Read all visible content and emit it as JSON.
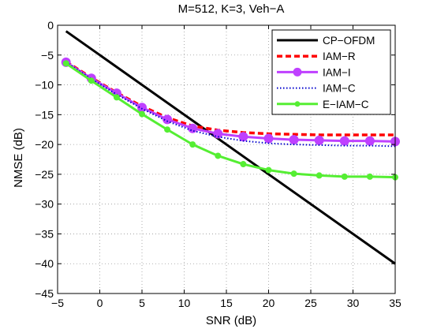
{
  "chart_data": {
    "type": "line",
    "title": "M=512, K=3, Veh−A",
    "xlabel": "SNR (dB)",
    "ylabel": "NMSE (dB)",
    "xlim": [
      -5,
      35
    ],
    "ylim": [
      -45,
      0
    ],
    "xticks": [
      -5,
      0,
      5,
      10,
      15,
      20,
      25,
      30,
      35
    ],
    "yticks": [
      0,
      -5,
      -10,
      -15,
      -20,
      -25,
      -30,
      -35,
      -40,
      -45
    ],
    "xtick_labels": [
      "−5",
      "0",
      "5",
      "10",
      "15",
      "20",
      "25",
      "30",
      "35"
    ],
    "ytick_labels": [
      "0",
      "−5",
      "−10",
      "−15",
      "−20",
      "−25",
      "−30",
      "−35",
      "−40",
      "−45"
    ],
    "grid": true,
    "legend_position": "top-right",
    "series": [
      {
        "name": "CP−OFDM",
        "color": "#000000",
        "style": "solid",
        "marker": "none",
        "x": [
          -4,
          35
        ],
        "y": [
          -1,
          -40
        ]
      },
      {
        "name": "IAM−R",
        "color": "#ff0000",
        "style": "dashed",
        "marker": "none",
        "x": [
          -4,
          -1,
          2,
          5,
          8,
          11,
          14,
          17,
          20,
          23,
          26,
          29,
          32,
          35
        ],
        "y": [
          -6.1,
          -8.8,
          -11.3,
          -13.6,
          -15.5,
          -16.9,
          -17.6,
          -18.0,
          -18.2,
          -18.3,
          -18.4,
          -18.4,
          -18.4,
          -18.4
        ]
      },
      {
        "name": "IAM−I",
        "color": "#bf40ff",
        "style": "solid",
        "marker": "circle",
        "x": [
          -4,
          -1,
          2,
          5,
          8,
          11,
          14,
          17,
          20,
          23,
          26,
          29,
          32,
          35
        ],
        "y": [
          -6.2,
          -8.9,
          -11.4,
          -13.8,
          -15.8,
          -17.3,
          -18.2,
          -18.7,
          -19.0,
          -19.2,
          -19.3,
          -19.4,
          -19.4,
          -19.5
        ]
      },
      {
        "name": "IAM−C",
        "color": "#0000cc",
        "style": "dotted",
        "marker": "none",
        "x": [
          -4,
          -1,
          2,
          5,
          8,
          11,
          14,
          17,
          20,
          23,
          26,
          29,
          32,
          35
        ],
        "y": [
          -6.2,
          -9.0,
          -11.6,
          -14.0,
          -16.1,
          -17.7,
          -18.7,
          -19.4,
          -19.8,
          -20.0,
          -20.1,
          -20.2,
          -20.2,
          -20.3
        ]
      },
      {
        "name": "E−IAM−C",
        "color": "#55ee33",
        "style": "solid",
        "marker": "dot",
        "x": [
          -4,
          -1,
          2,
          5,
          8,
          11,
          14,
          17,
          20,
          23,
          26,
          29,
          32,
          35
        ],
        "y": [
          -6.4,
          -9.3,
          -12.1,
          -14.9,
          -17.5,
          -20.0,
          -21.9,
          -23.3,
          -24.3,
          -24.9,
          -25.2,
          -25.4,
          -25.4,
          -25.5
        ]
      }
    ]
  }
}
